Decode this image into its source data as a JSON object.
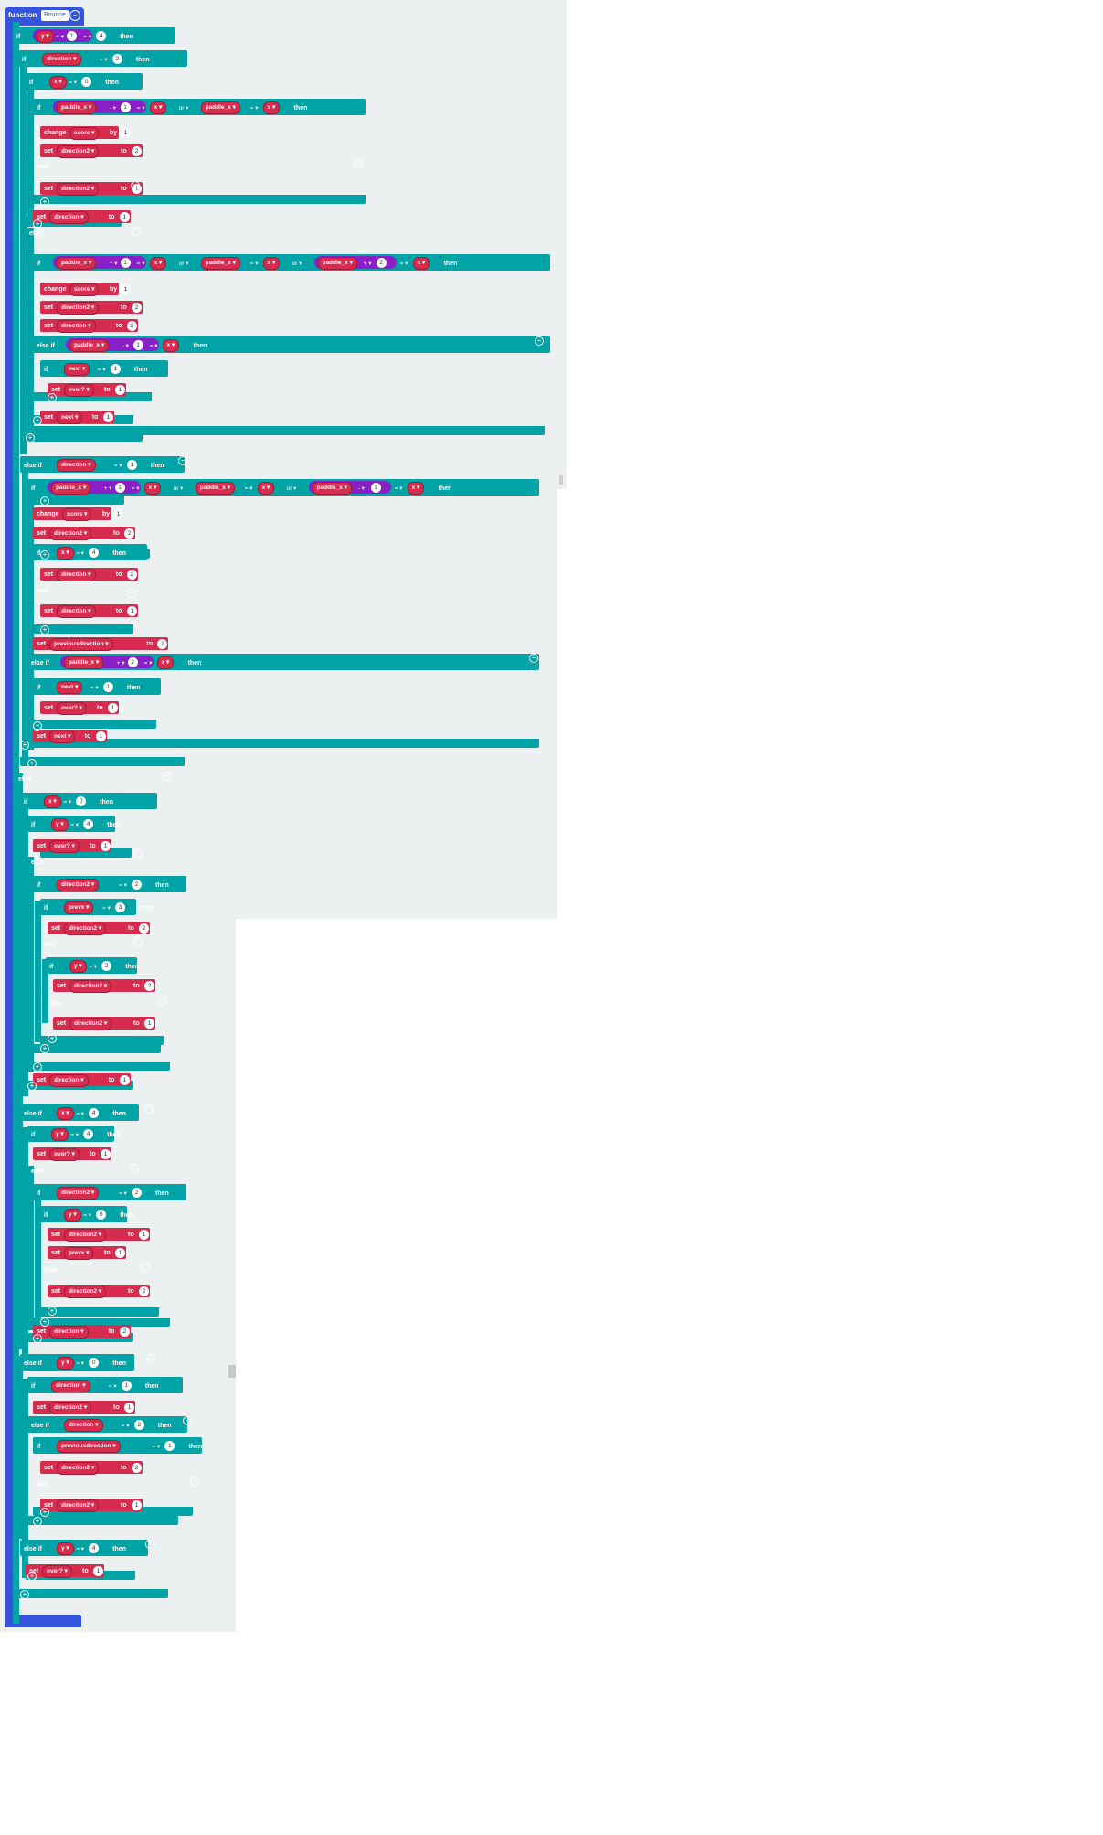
{
  "function_block": {
    "keyword": "function",
    "name": "Bounce"
  },
  "keywords": {
    "if": "if",
    "then": "then",
    "else": "else",
    "else_if": "else if",
    "or": "or",
    "set": "set",
    "to": "to",
    "change": "change",
    "by": "by"
  },
  "variables": [
    "y",
    "direction",
    "x",
    "paddle_x",
    "score",
    "direction2",
    "next",
    "over?",
    "previousdirection",
    "prevx"
  ],
  "operators": {
    "eq": "=",
    "plus": "+",
    "minus": "-"
  },
  "icons": {
    "collapse": "minus-circle-icon",
    "add": "plus-circle-icon",
    "dropdown": "caret-down-icon"
  },
  "colors": {
    "function": "#3455db",
    "logic": "#00a4a6",
    "variable": "#d82c4f",
    "math": "#8a1fc8",
    "workspace": "#ecf0f1"
  },
  "blocks": [
    {
      "k": "if",
      "v": "y",
      "o": "+",
      "n": "1",
      "e": "=",
      "n2": "4"
    },
    {
      "k": "if",
      "v": "direction",
      "e": "=",
      "n2": "2"
    },
    {
      "k": "if",
      "v": "x",
      "e": "=",
      "n2": "0"
    },
    {
      "k": "if",
      "v": "paddle_x",
      "o": "-",
      "n": "1",
      "e": "=",
      "v2": "x",
      "or": "or",
      "v3": "paddle_x",
      "v4": "x"
    },
    {
      "k": "change",
      "v": "score",
      "t": "by",
      "n": "1"
    },
    {
      "k": "set",
      "v": "direction2",
      "t": "to",
      "n": "2"
    },
    {
      "k": "else"
    },
    {
      "k": "set",
      "v": "direction2",
      "t": "to",
      "n": "1"
    },
    {
      "k": "set",
      "v": "direction",
      "t": "to",
      "n": "1"
    },
    {
      "k": "else"
    },
    {
      "k": "if",
      "v": "paddle_x",
      "o": "+",
      "n": "1",
      "e": "=",
      "v2": "x",
      "or": "or",
      "v3": "paddle_x",
      "v4": "x",
      "or2": "or",
      "v5": "paddle_x",
      "n3": "2",
      "v6": "x"
    },
    {
      "k": "change",
      "v": "score",
      "t": "by",
      "n": "1"
    },
    {
      "k": "set",
      "v": "direction2",
      "t": "to",
      "n": "2"
    },
    {
      "k": "set",
      "v": "direction",
      "t": "to",
      "n": "2"
    },
    {
      "k": "else if",
      "v": "paddle_x",
      "o": "-",
      "n": "1",
      "e": "=",
      "v2": "x"
    },
    {
      "k": "if",
      "v": "next",
      "e": "=",
      "n2": "1"
    },
    {
      "k": "set",
      "v": "over?",
      "t": "to",
      "n": "1"
    },
    {
      "k": "set",
      "v": "next",
      "t": "to",
      "n": "1"
    },
    {
      "k": "else if",
      "v": "direction",
      "e": "=",
      "n2": "1"
    },
    {
      "k": "if",
      "v": "paddle_x",
      "o": "+",
      "n": "1",
      "e": "=",
      "v2": "x",
      "or": "or",
      "v3": "paddle_x",
      "v4": "x",
      "or2": "or",
      "v5": "paddle_x",
      "n3": "1",
      "v6": "x"
    },
    {
      "k": "change",
      "v": "score",
      "t": "by",
      "n": "1"
    },
    {
      "k": "set",
      "v": "direction2",
      "t": "to",
      "n": "2"
    },
    {
      "k": "if",
      "v": "x",
      "e": "=",
      "n2": "4"
    },
    {
      "k": "set",
      "v": "direction",
      "t": "to",
      "n": "2"
    },
    {
      "k": "else"
    },
    {
      "k": "set",
      "v": "direction",
      "t": "to",
      "n": "1"
    },
    {
      "k": "set",
      "v": "previousdirection",
      "t": "to",
      "n": "2"
    },
    {
      "k": "else if",
      "v": "paddle_x",
      "o": "+",
      "n": "2",
      "e": "=",
      "v2": "x"
    },
    {
      "k": "if",
      "v": "next",
      "e": "=",
      "n2": "1"
    },
    {
      "k": "set",
      "v": "over?",
      "t": "to",
      "n": "1"
    },
    {
      "k": "set",
      "v": "next",
      "t": "to",
      "n": "1"
    },
    {
      "k": "else"
    },
    {
      "k": "if",
      "v": "x",
      "e": "=",
      "n2": "0"
    },
    {
      "k": "if",
      "v": "y",
      "e": "=",
      "n2": "4"
    },
    {
      "k": "set",
      "v": "over?",
      "t": "to",
      "n": "1"
    },
    {
      "k": "else"
    },
    {
      "k": "if",
      "v": "direction2",
      "e": "=",
      "n2": "2"
    },
    {
      "k": "if",
      "v": "prevx",
      "e": "=",
      "n2": "3"
    },
    {
      "k": "set",
      "v": "direction2",
      "t": "to",
      "n": "2"
    },
    {
      "k": "else"
    },
    {
      "k": "if",
      "v": "y",
      "e": "=",
      "n2": "2"
    },
    {
      "k": "set",
      "v": "direction2",
      "t": "to",
      "n": "2"
    },
    {
      "k": "else"
    },
    {
      "k": "set",
      "v": "direction2",
      "t": "to",
      "n": "1"
    },
    {
      "k": "set",
      "v": "direction",
      "t": "to",
      "n": "1"
    },
    {
      "k": "else if",
      "v": "x",
      "e": "=",
      "n2": "4"
    },
    {
      "k": "if",
      "v": "y",
      "e": "=",
      "n2": "4"
    },
    {
      "k": "set",
      "v": "over?",
      "t": "to",
      "n": "1"
    },
    {
      "k": "else"
    },
    {
      "k": "if",
      "v": "direction2",
      "e": "=",
      "n2": "2"
    },
    {
      "k": "if",
      "v": "y",
      "e": "=",
      "n2": "0"
    },
    {
      "k": "set",
      "v": "direction2",
      "t": "to",
      "n": "1"
    },
    {
      "k": "set",
      "v": "prevx",
      "t": "to",
      "n": "1"
    },
    {
      "k": "else"
    },
    {
      "k": "set",
      "v": "direction2",
      "t": "to",
      "n": "2"
    },
    {
      "k": "set",
      "v": "direction",
      "t": "to",
      "n": "2"
    },
    {
      "k": "else if",
      "v": "y",
      "e": "=",
      "n2": "0"
    },
    {
      "k": "if",
      "v": "direction",
      "e": "=",
      "n2": "1"
    },
    {
      "k": "set",
      "v": "direction2",
      "t": "to",
      "n": "1"
    },
    {
      "k": "else if",
      "v": "direction",
      "e": "=",
      "n2": "2"
    },
    {
      "k": "if",
      "v": "previousdirection",
      "e": "=",
      "n2": "1"
    },
    {
      "k": "set",
      "v": "direction2",
      "t": "to",
      "n": "2"
    },
    {
      "k": "else"
    },
    {
      "k": "set",
      "v": "direction2",
      "t": "to",
      "n": "1"
    },
    {
      "k": "else if",
      "v": "y",
      "e": "=",
      "n2": "4"
    },
    {
      "k": "set",
      "v": "over?",
      "t": "to",
      "n": "1"
    }
  ]
}
